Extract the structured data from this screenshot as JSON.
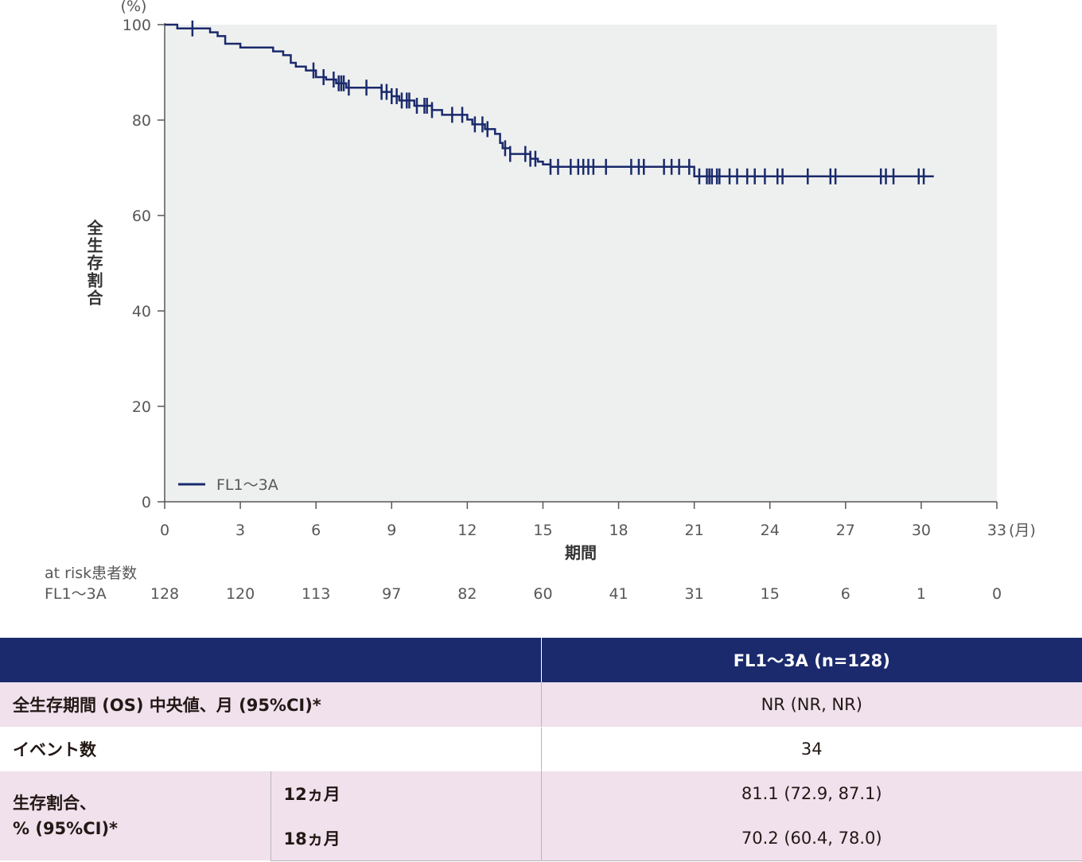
{
  "chart_data": {
    "type": "line",
    "ylabel": "全生存割合",
    "y_unit": "(%)",
    "xlabel": "期間",
    "x_unit": "(月)",
    "xlim": [
      0,
      33
    ],
    "ylim": [
      0,
      100
    ],
    "x_ticks": [
      0,
      3,
      6,
      9,
      12,
      15,
      18,
      21,
      24,
      27,
      30,
      33
    ],
    "y_ticks": [
      0,
      20,
      40,
      60,
      80,
      100
    ],
    "legend": "bottom-left",
    "series": [
      {
        "name": "FL1～3A",
        "color": "#1a2a6c",
        "step_x": [
          0,
          0.1,
          0.5,
          1.2,
          1.8,
          2.1,
          2.4,
          3.0,
          4.3,
          4.7,
          5.0,
          5.2,
          5.6,
          6.0,
          6.4,
          6.8,
          7.0,
          7.2,
          8.1,
          8.6,
          9.0,
          9.3,
          9.9,
          10.3,
          10.6,
          11.0,
          12.0,
          12.2,
          12.7,
          13.1,
          13.3,
          13.4,
          13.7,
          14.1,
          14.5,
          14.8,
          15.0,
          15.3,
          21.0,
          30.5
        ],
        "step_y": [
          100,
          100,
          99.2,
          99.2,
          98.4,
          97.6,
          96.0,
          95.2,
          94.4,
          93.6,
          92.0,
          91.2,
          90.4,
          89.0,
          88.5,
          87.7,
          87.7,
          86.8,
          86.8,
          85.9,
          85.0,
          84.1,
          83.0,
          83.0,
          82.1,
          81.1,
          80.1,
          79.1,
          78.1,
          77.1,
          75.2,
          74.1,
          72.9,
          72.9,
          71.9,
          71.3,
          70.7,
          70.2,
          68.2,
          68.2
        ],
        "censor_x": [
          1.1,
          5.9,
          6.3,
          6.7,
          6.9,
          7.0,
          7.1,
          7.3,
          8.0,
          8.6,
          8.8,
          9.0,
          9.2,
          9.4,
          9.6,
          9.7,
          10.0,
          10.3,
          10.4,
          10.6,
          11.4,
          11.8,
          12.3,
          12.6,
          12.8,
          13.5,
          13.7,
          14.3,
          14.5,
          14.7,
          15.3,
          15.6,
          16.1,
          16.4,
          16.6,
          16.8,
          17.0,
          17.5,
          18.5,
          18.8,
          19.0,
          19.8,
          20.1,
          20.4,
          20.8,
          21.2,
          21.5,
          21.6,
          21.7,
          21.9,
          22.0,
          22.4,
          22.7,
          23.1,
          23.4,
          23.8,
          24.3,
          24.5,
          25.5,
          26.4,
          26.6,
          28.4,
          28.6,
          28.9,
          29.9,
          30.1
        ]
      }
    ],
    "at_risk": {
      "title": "at risk患者数",
      "label": "FL1～3A",
      "counts": [
        "128",
        "120",
        "113",
        "97",
        "82",
        "60",
        "41",
        "31",
        "15",
        "6",
        "1",
        "0"
      ]
    }
  },
  "table": {
    "header": "FL1～3A (n=128)",
    "rows": {
      "os_label": "全生存期間 (OS) 中央値、月 (95%CI)*",
      "os_value": "NR (NR, NR)",
      "events_label": "イベント数",
      "events_value": "34",
      "surv_label_1": "生存割合、",
      "surv_label_2": "% (95%CI)*",
      "m12_label": "12ヵ月",
      "m12_value": "81.1 (72.9, 87.1)",
      "m18_label": "18ヵ月",
      "m18_value": "70.2 (60.4, 78.0)"
    }
  }
}
